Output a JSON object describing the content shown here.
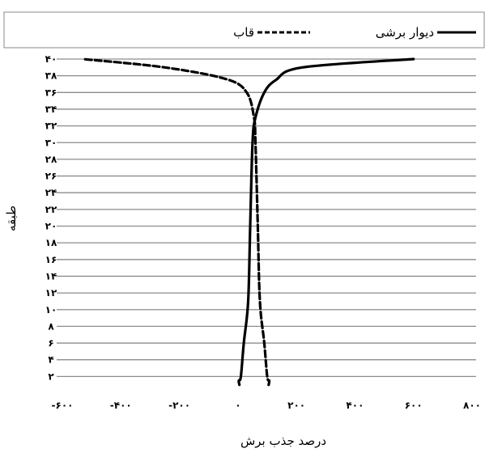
{
  "chart_data": {
    "type": "line",
    "xlabel": "درصد جذب برش",
    "ylabel": "طبقه",
    "xlim": [
      -600,
      800
    ],
    "ylim": [
      0,
      40
    ],
    "x_ticks": [
      -600,
      -400,
      -200,
      0,
      200,
      400,
      600,
      800
    ],
    "x_tick_labels": [
      "-۶۰۰",
      "-۴۰۰",
      "-۲۰۰",
      "۰",
      "۲۰۰",
      "۴۰۰",
      "۶۰۰",
      "۸۰۰"
    ],
    "y_ticks": [
      2,
      4,
      6,
      8,
      10,
      12,
      14,
      16,
      18,
      20,
      22,
      24,
      26,
      28,
      30,
      32,
      34,
      36,
      38,
      40
    ],
    "y_tick_labels": [
      "۲",
      "۴",
      "۶",
      "۸",
      "۱۰",
      "۱۲",
      "۱۴",
      "۱۶",
      "۱۸",
      "۲۰",
      "۲۲",
      "۲۴",
      "۲۶",
      "۲۸",
      "۳۰",
      "۳۲",
      "۳۴",
      "۳۶",
      "۳۸",
      "۴۰"
    ],
    "grid": "horizontal",
    "legend_position": "top",
    "series": [
      {
        "name": "دیوار برشی",
        "style": "solid",
        "color": "#000000",
        "points": [
          [
            5,
            1
          ],
          [
            3,
            1.5
          ],
          [
            10,
            2
          ],
          [
            20,
            6
          ],
          [
            35,
            11
          ],
          [
            42,
            20
          ],
          [
            50,
            30
          ],
          [
            60,
            33
          ],
          [
            90,
            36
          ],
          [
            130,
            37.5
          ],
          [
            220,
            39
          ],
          [
            600,
            40
          ]
        ]
      },
      {
        "name": "قاب",
        "style": "dashed",
        "color": "#000000",
        "points": [
          [
            105,
            1
          ],
          [
            107,
            1.5
          ],
          [
            100,
            2
          ],
          [
            90,
            6
          ],
          [
            75,
            11
          ],
          [
            68,
            20
          ],
          [
            60,
            30
          ],
          [
            55,
            33
          ],
          [
            30,
            36
          ],
          [
            -40,
            37.6
          ],
          [
            -250,
            39
          ],
          [
            -530,
            40
          ]
        ]
      }
    ]
  }
}
